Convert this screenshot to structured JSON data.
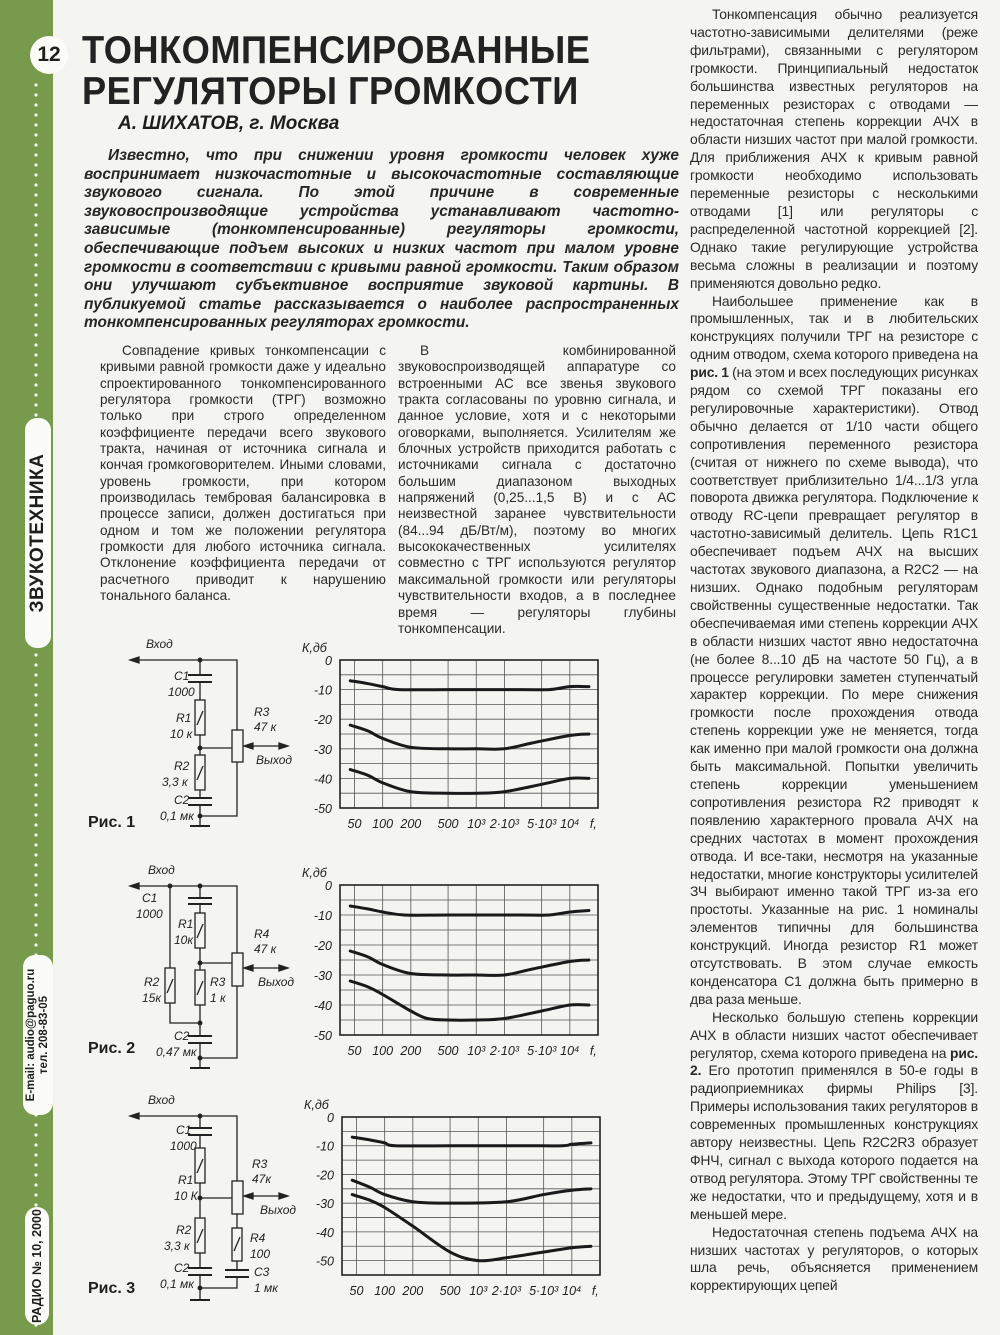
{
  "sidebar": {
    "page_number": "12",
    "section": "ЗВУКОТЕХНИКА",
    "email": "E-mail: audio@paguo.ru",
    "phone": "тел. 208-83-05",
    "issue": "РАДИО № 10, 2000",
    "color": "#779a4c"
  },
  "article": {
    "title_line1": "ТОНКОМПЕНСИРОВАННЫЕ",
    "title_line2": "РЕГУЛЯТОРЫ ГРОМКОСТИ",
    "byline": "А. ШИХАТОВ, г. Москва",
    "lead": "Известно, что при снижении уровня громкости человек хуже воспринимает низкочастотные и высокочастотные составляющие звукового сигнала. По этой причине в современные звуковоспроизводящие устройства устанавливают частотно-зависимые (тонкомпенсированные) регуляторы громкости, обеспечивающие подъем высоких и низких частот при малом уровне громкости в соответствии с кривыми равной громкости. Таким образом они улучшают субъективное восприятие звуковой картины. В публикуемой статье рассказывается о наиболее распространенных тонкомпенсированных регуляторах громкости.",
    "col1": "Совпадение кривых тонкомпенсации с кривыми равной громкости даже у идеально спроектированного тонкомпенсированного регулятора громкости (ТРГ) возможно только при строго определенном коэффициенте передачи всего звукового тракта, начиная от источника сигнала и кончая громкоговорителем. Иными словами, уровень громкости, при котором производилась тембровая балансировка в процессе записи, должен достигаться при одном и том же положении регулятора громкости для любого источника сигнала. Отклонение коэффициента передачи от расчетного приводит к нарушению тонального баланса.",
    "col2": "В комбинированной звуковоспроизводящей аппаратуре со встроенными АС все звенья звукового тракта согласованы по уровню сигнала, и данное условие, хотя и с некоторыми оговорками, выполняется. Усилителям же блочных устройств приходится работать с источниками сигнала с достаточно большим диапазоном выходных напряжений (0,25...1,5 В) и с АС неизвестной заранее чувствительности (84...94 дБ/Вт/м), поэтому во многих высококачественных усилителях совместно с ТРГ используются регулятор максимальной громкости или регуляторы чувствительности входов, а в последнее время — регуляторы глубины тонкомпенсации.",
    "col3_p1": "Тонкомпенсация обычно реализуется частотно-зависимыми делителями (реже фильтрами), связанными с регулятором громкости. Принципиальный недостаток большинства известных регуляторов на переменных резисторах с отводами — недостаточная степень коррекции АЧХ в области низших частот при малой громкости. Для приближения АЧХ к кривым равной громкости необходимо использовать переменные резисторы с несколькими отводами [1] или регуляторы с распределенной частотной коррекцией [2]. Однако такие регулирующие устройства весьма сложны в реализации и поэтому применяются довольно редко.",
    "col3_p2_a": "Наибольшее применение как в промышленных, так и в любительских конструкциях получили ТРГ на резисторе с одним отводом, схема которого приведена на ",
    "col3_p2_ref": "рис. 1",
    "col3_p2_b": " (на этом и всех последующих рисунках рядом со схемой ТРГ показаны его регулировочные характеристики). Отвод обычно делается от 1/10 части общего сопротивления переменного резистора (считая от нижнего по схеме вывода), что соответствует приблизительно 1/4...1/3 угла поворота движка регулятора. Подключение к отводу RC-цепи превращает регулятор в частотно-зависимый делитель. Цепь R1C1 обеспечивает подъем АЧХ на высших частотах звукового диапазона, а R2C2 — на низших. Однако подобным регуляторам свойственны существенные недостатки. Так обеспечиваемая ими степень коррекции АЧХ в области низших частот явно недостаточна (не более 8...10 дБ на частоте 50 Гц), а в процессе регулировки заметен ступенчатый характер коррекции. По мере снижения громкости после прохождения отвода степень коррекции уже не меняется, тогда как именно при малой громкости она должна быть максимальной. Попытки увеличить степень коррекции уменьшением сопротивления резистора R2 приводят к появлению характерного провала АЧХ на средних частотах в момент прохождения отвода. И все-таки, несмотря на указанные недостатки, многие конструкторы усилителей ЗЧ выбирают именно такой ТРГ из-за его простоты. Указанные на рис. 1 номиналы элементов типичны для большинства конструкций. Иногда резистор R1 может отсутствовать. В этом случае емкость конденсатора C1 должна быть примерно в два раза меньше.",
    "col3_p3_a": "Несколько большую степень коррекции АЧХ в области низших частот обеспечивает регулятор, схема которого приведена на ",
    "col3_p3_ref": "рис. 2.",
    "col3_p3_b": " Его прототип применялся в 50-е годы в радиоприемниках фирмы Philips [3]. Примеры использования таких регуляторов в современных промышленных конструкциях автору неизвестны. Цепь R2C2R3 образует ФНЧ, сигнал с выхода которого подается на отвод регулятора. Этому ТРГ свойственны те же недостатки, что и предыдущему, хотя и в меньшей мере.",
    "col3_p4": "Недостаточная степень подъема АЧХ на низших частотах у регуляторов, о которых шла речь, объясняется применением корректирующих цепей"
  },
  "figures": [
    {
      "caption": "Рис. 1",
      "input": "Вход",
      "output": "Выход",
      "C1": "C1",
      "C1v": "1000",
      "R1": "R1",
      "R1v": "10 к",
      "R2": "R2",
      "R2v": "3,3 к",
      "C2": "C2",
      "C2v": "0,1 мк",
      "R3": "R3",
      "R3v": "47 к"
    },
    {
      "caption": "Рис. 2",
      "input": "Вход",
      "output": "Выход",
      "C1": "C1",
      "C1v": "1000",
      "R1": "R1",
      "R1v": "10к",
      "R2": "R2",
      "R2v": "15к",
      "R3": "R3",
      "R3v": "1 к",
      "C2": "C2",
      "C2v": "0,47 мк",
      "R4": "R4",
      "R4v": "47 к"
    },
    {
      "caption": "Рис. 3",
      "input": "Вход",
      "output": "Выход",
      "C1": "C1",
      "C1v": "1000",
      "R1": "R1",
      "R1v": "10 К",
      "R2": "R2",
      "R2v": "3,3 к",
      "C2": "C2",
      "C2v": "0,1 мк",
      "R3": "R3",
      "R3v": "47к",
      "R4": "R4",
      "R4v": "100",
      "C3": "C3",
      "C3v": "1 мк"
    }
  ],
  "chart_data": [
    {
      "type": "line",
      "ylabel": "К,дб",
      "xlabel": "f, Гц",
      "xscale": "log",
      "xlim": [
        35,
        20000
      ],
      "ylim": [
        -50,
        0
      ],
      "grid": true,
      "xticks": [
        50,
        100,
        200,
        500,
        1000,
        2000,
        5000,
        10000
      ],
      "xtick_labels": [
        "50",
        "100",
        "200",
        "500",
        "10³",
        "2·10³",
        "5·10³",
        "10⁴"
      ],
      "yticks": [
        0,
        -10,
        -20,
        -30,
        -40,
        -50
      ],
      "ytick_labels": [
        "0",
        "-10",
        "-20",
        "-30",
        "-40",
        "-50"
      ],
      "series": [
        {
          "points": [
            [
              45,
              -7
            ],
            [
              70,
              -8
            ],
            [
              100,
              -9
            ],
            [
              150,
              -10
            ],
            [
              500,
              -10
            ],
            [
              3000,
              -10
            ],
            [
              6000,
              -10
            ],
            [
              10000,
              -9
            ],
            [
              16000,
              -9
            ]
          ]
        },
        {
          "points": [
            [
              45,
              -22
            ],
            [
              70,
              -24
            ],
            [
              100,
              -26.5
            ],
            [
              200,
              -29.5
            ],
            [
              500,
              -30
            ],
            [
              1000,
              -30
            ],
            [
              2000,
              -30
            ],
            [
              4000,
              -28
            ],
            [
              10000,
              -25.5
            ],
            [
              16000,
              -25
            ]
          ]
        },
        {
          "points": [
            [
              45,
              -37
            ],
            [
              70,
              -39
            ],
            [
              100,
              -41.5
            ],
            [
              200,
              -44.5
            ],
            [
              500,
              -45
            ],
            [
              1000,
              -45
            ],
            [
              2000,
              -44.5
            ],
            [
              5000,
              -42
            ],
            [
              10000,
              -40
            ],
            [
              16000,
              -40
            ]
          ]
        }
      ]
    },
    {
      "type": "line",
      "ylabel": "К,дб",
      "xlabel": "f, Гц",
      "xscale": "log",
      "xlim": [
        35,
        20000
      ],
      "ylim": [
        -50,
        0
      ],
      "grid": true,
      "xticks": [
        50,
        100,
        200,
        500,
        1000,
        2000,
        5000,
        10000
      ],
      "xtick_labels": [
        "50",
        "100",
        "200",
        "500",
        "10³",
        "2·10³",
        "5·10³",
        "10⁴"
      ],
      "yticks": [
        0,
        -10,
        -20,
        -30,
        -40,
        -50
      ],
      "ytick_labels": [
        "0",
        "-10",
        "-20",
        "-30",
        "-40",
        "-50"
      ],
      "series": [
        {
          "points": [
            [
              45,
              -7
            ],
            [
              70,
              -8
            ],
            [
              100,
              -9
            ],
            [
              170,
              -10
            ],
            [
              500,
              -10
            ],
            [
              3000,
              -10
            ],
            [
              6000,
              -10
            ],
            [
              10000,
              -9
            ],
            [
              16000,
              -8.5
            ]
          ]
        },
        {
          "points": [
            [
              45,
              -22
            ],
            [
              70,
              -24
            ],
            [
              100,
              -26.5
            ],
            [
              200,
              -29.5
            ],
            [
              500,
              -30
            ],
            [
              1000,
              -30
            ],
            [
              2000,
              -30
            ],
            [
              4000,
              -28
            ],
            [
              10000,
              -25.5
            ],
            [
              16000,
              -25
            ]
          ]
        },
        {
          "points": [
            [
              45,
              -32
            ],
            [
              70,
              -34
            ],
            [
              100,
              -36.5
            ],
            [
              200,
              -42
            ],
            [
              300,
              -44.5
            ],
            [
              500,
              -45
            ],
            [
              1000,
              -45
            ],
            [
              2000,
              -44.5
            ],
            [
              5000,
              -42
            ],
            [
              10000,
              -40
            ],
            [
              16000,
              -40
            ]
          ]
        }
      ]
    },
    {
      "type": "line",
      "ylabel": "К,дб",
      "xlabel": "f, Гц",
      "xscale": "log",
      "xlim": [
        35,
        20000
      ],
      "ylim": [
        -55,
        0
      ],
      "grid": true,
      "xticks": [
        50,
        100,
        200,
        500,
        1000,
        2000,
        5000,
        10000
      ],
      "xtick_labels": [
        "50",
        "100",
        "200",
        "500",
        "10³",
        "2·10³",
        "5·10³",
        "10⁴"
      ],
      "yticks": [
        0,
        -10,
        -20,
        -30,
        -40,
        -50
      ],
      "ytick_labels": [
        "0",
        "-10",
        "-20",
        "-30",
        "-40",
        "-50"
      ],
      "series": [
        {
          "points": [
            [
              45,
              -7
            ],
            [
              70,
              -8
            ],
            [
              100,
              -9
            ],
            [
              130,
              -10
            ],
            [
              500,
              -10
            ],
            [
              3000,
              -10
            ],
            [
              8000,
              -10
            ],
            [
              10000,
              -9.5
            ],
            [
              16000,
              -9
            ]
          ]
        },
        {
          "points": [
            [
              45,
              -22
            ],
            [
              70,
              -24.5
            ],
            [
              100,
              -27
            ],
            [
              200,
              -29.5
            ],
            [
              500,
              -30
            ],
            [
              2000,
              -29.5
            ],
            [
              5000,
              -27
            ],
            [
              10000,
              -25.5
            ],
            [
              16000,
              -25
            ]
          ]
        },
        {
          "points": [
            [
              45,
              -27
            ],
            [
              70,
              -29
            ],
            [
              100,
              -31.5
            ],
            [
              200,
              -38
            ],
            [
              500,
              -47
            ],
            [
              1000,
              -50
            ],
            [
              2000,
              -49
            ],
            [
              5000,
              -47
            ],
            [
              10000,
              -45.5
            ],
            [
              16000,
              -45
            ]
          ]
        }
      ]
    }
  ]
}
